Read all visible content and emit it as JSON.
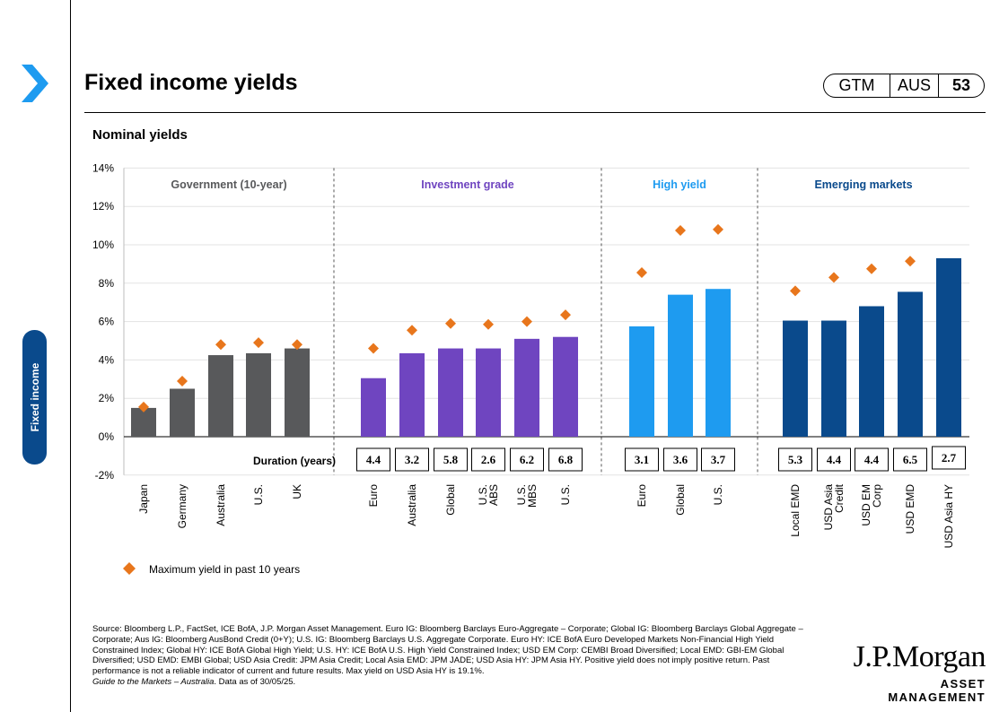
{
  "header": {
    "title": "Fixed income yields",
    "tags": [
      "GTM",
      "AUS",
      "53"
    ]
  },
  "sidebar": {
    "section_label": "Fixed income"
  },
  "subtitle": "Nominal yields",
  "chart_data": {
    "type": "bar",
    "ylim": [
      -2,
      14
    ],
    "yticks": [
      "-2%",
      "0%",
      "2%",
      "4%",
      "6%",
      "8%",
      "10%",
      "12%",
      "14%"
    ],
    "grid": true,
    "legend_position": "bottom-left",
    "duration_label": "Duration (years)",
    "max_series_name": "Maximum yield in past 10 years",
    "groups": [
      {
        "name": "Government (10-year)",
        "color": "#58595b",
        "label_color": "#58595b",
        "categories": [
          "Japan",
          "Germany",
          "Australia",
          "U.S.",
          "UK"
        ],
        "values": [
          1.5,
          2.5,
          4.25,
          4.35,
          4.6
        ],
        "max_yield": [
          1.55,
          2.9,
          4.8,
          4.9,
          4.8
        ],
        "duration": []
      },
      {
        "name": "Investment grade",
        "color": "#6f45c0",
        "label_color": "#6f45c0",
        "categories": [
          "Euro",
          "Australia",
          "Global",
          "U.S. ABS",
          "U.S. MBS",
          "U.S."
        ],
        "values": [
          3.05,
          4.35,
          4.6,
          4.6,
          5.1,
          5.2
        ],
        "max_yield": [
          4.6,
          5.55,
          5.9,
          5.85,
          6.0,
          6.35
        ],
        "duration": [
          "4.4",
          "3.2",
          "5.8",
          "2.6",
          "6.2",
          "6.8"
        ]
      },
      {
        "name": "High yield",
        "color": "#1e9bf0",
        "label_color": "#1e9bf0",
        "categories": [
          "Euro",
          "Global",
          "U.S."
        ],
        "values": [
          5.75,
          7.4,
          7.7
        ],
        "max_yield": [
          8.55,
          10.75,
          10.8
        ],
        "duration": [
          "3.1",
          "3.6",
          "3.7"
        ]
      },
      {
        "name": "Emerging markets",
        "color": "#0a4a8c",
        "label_color": "#0a4a8c",
        "categories": [
          "Local EMD",
          "USD Asia Credit",
          "USD EM Corp",
          "USD EMD",
          "USD Asia HY"
        ],
        "values": [
          6.05,
          6.05,
          6.8,
          7.55,
          9.3
        ],
        "max_yield": [
          7.6,
          8.3,
          8.75,
          9.15,
          null
        ],
        "duration": [
          "5.3",
          "4.4",
          "4.4",
          "6.5",
          "2.7"
        ]
      }
    ],
    "colors": {
      "max_marker": "#e8761c"
    }
  },
  "source_note": "Source: Bloomberg L.P., FactSet, ICE BofA, J.P. Morgan Asset Management. Euro IG: Bloomberg Barclays Euro-Aggregate – Corporate; Global IG: Bloomberg Barclays Global Aggregate – Corporate; Aus IG: Bloomberg AusBond Credit (0+Y); U.S. IG: Bloomberg Barclays U.S. Aggregate Corporate. Euro HY: ICE BofA Euro Developed Markets Non-Financial High Yield Constrained Index; Global HY: ICE BofA Global High Yield; U.S. HY: ICE BofA U.S. High Yield Constrained Index; USD EM Corp: CEMBI Broad Diversified; Local EMD: GBI-EM Global Diversified; USD EMD: EMBI Global; USD Asia Credit: JPM Asia Credit; Local Asia EMD: JPM JADE; USD Asia HY: JPM Asia HY. Positive yield does not imply positive return. Past performance is not a reliable indicator of current and future results. Max yield on USD Asia HY is 19.1%.",
  "source_guide": "Guide to the Markets – Australia",
  "source_date": ". Data as of 30/05/25.",
  "logo": {
    "name": "J.P.Morgan",
    "tagline": "ASSET MANAGEMENT"
  }
}
